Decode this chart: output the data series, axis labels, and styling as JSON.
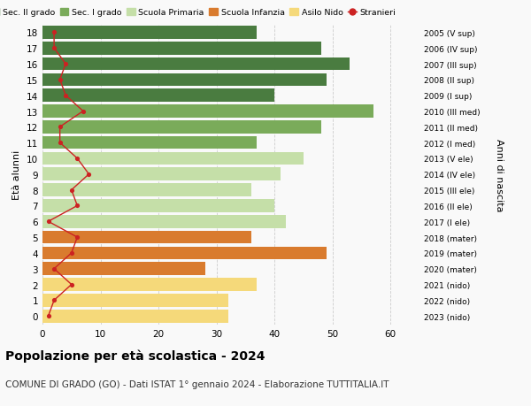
{
  "ages": [
    18,
    17,
    16,
    15,
    14,
    13,
    12,
    11,
    10,
    9,
    8,
    7,
    6,
    5,
    4,
    3,
    2,
    1,
    0
  ],
  "right_labels": [
    "2005 (V sup)",
    "2006 (IV sup)",
    "2007 (III sup)",
    "2008 (II sup)",
    "2009 (I sup)",
    "2010 (III med)",
    "2011 (II med)",
    "2012 (I med)",
    "2013 (V ele)",
    "2014 (IV ele)",
    "2015 (III ele)",
    "2016 (II ele)",
    "2017 (I ele)",
    "2018 (mater)",
    "2019 (mater)",
    "2020 (mater)",
    "2021 (nido)",
    "2022 (nido)",
    "2023 (nido)"
  ],
  "bar_values": [
    37,
    48,
    53,
    49,
    40,
    57,
    48,
    37,
    45,
    41,
    36,
    40,
    42,
    36,
    49,
    28,
    37,
    32,
    32
  ],
  "bar_colors": [
    "#4a7c40",
    "#4a7c40",
    "#4a7c40",
    "#4a7c40",
    "#4a7c40",
    "#7aab5a",
    "#7aab5a",
    "#7aab5a",
    "#c5dfa8",
    "#c5dfa8",
    "#c5dfa8",
    "#c5dfa8",
    "#c5dfa8",
    "#d97b2e",
    "#d97b2e",
    "#d97b2e",
    "#f5d97a",
    "#f5d97a",
    "#f5d97a"
  ],
  "stranieri_values": [
    2,
    2,
    4,
    3,
    4,
    7,
    3,
    3,
    6,
    8,
    5,
    6,
    1,
    6,
    5,
    2,
    5,
    2,
    1
  ],
  "title_bold": "Popolazione per età scolastica - 2024",
  "title_sub": "COMUNE DI GRADO (GO) - Dati ISTAT 1° gennaio 2024 - Elaborazione TUTTITALIA.IT",
  "ylabel_left": "Età alunni",
  "ylabel_right": "Anni di nascita",
  "xlim": [
    0,
    65
  ],
  "xticks": [
    0,
    10,
    20,
    30,
    40,
    50,
    60
  ],
  "legend_labels": [
    "Sec. II grado",
    "Sec. I grado",
    "Scuola Primaria",
    "Scuola Infanzia",
    "Asilo Nido",
    "Stranieri"
  ],
  "legend_colors": [
    "#4a7c40",
    "#7aab5a",
    "#c5dfa8",
    "#d97b2e",
    "#f5d97a",
    "#cc2222"
  ],
  "bar_height": 0.82,
  "background_color": "#f9f9f9",
  "grid_color": "#cccccc",
  "stranieri_color": "#cc2222"
}
